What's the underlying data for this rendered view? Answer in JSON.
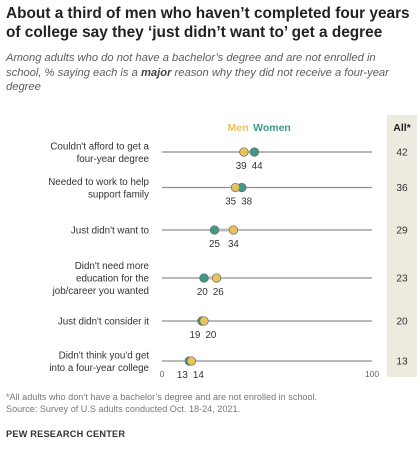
{
  "title": "About a third of men who haven’t completed four years of college say they ‘just didn’t want to’ get a degree",
  "subtitle_pre": "Among adults who do not have a bachelor’s degree and are not enrolled in school, % saying each is a ",
  "subtitle_bold": "major",
  "subtitle_post": " reason why they did not receive a four-year degree",
  "footnote": "*All adults who don’t have a bachelor’s degree and are not enrolled in school.",
  "source": "Source: Survey of U.S adults conducted Oct. 18-24, 2021.",
  "org": "PEW RESEARCH CENTER",
  "chart_data": {
    "type": "dot",
    "categories": [
      [
        "Couldn't afford to get a",
        "four-year degree"
      ],
      [
        "Needed to work to help",
        "support family"
      ],
      [
        "Just didn't want to"
      ],
      [
        "Didn't need more",
        "education for the",
        "job/career you wanted"
      ],
      [
        "Just didn't consider it"
      ],
      [
        "Didn't think you'd get",
        "into a four-year college"
      ]
    ],
    "series": [
      {
        "name": "Men",
        "color": "#e9c25a",
        "values": [
          39,
          35,
          34,
          26,
          20,
          14
        ]
      },
      {
        "name": "Women",
        "color": "#3e9a86",
        "values": [
          44,
          38,
          25,
          20,
          19,
          13
        ]
      }
    ],
    "all_column": {
      "name": "All*",
      "values": [
        42,
        36,
        29,
        23,
        20,
        13
      ]
    },
    "xlim": [
      0,
      100
    ],
    "x_tick_labels": [
      "0",
      "100"
    ]
  }
}
